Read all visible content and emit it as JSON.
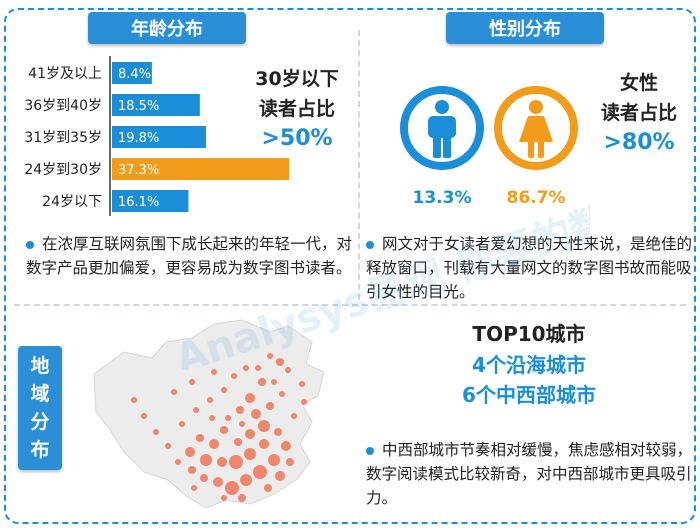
{
  "sections": {
    "age": "年龄分布",
    "gender": "性别分布",
    "region": "地域分布"
  },
  "chart_data": {
    "type": "bar",
    "orientation": "horizontal",
    "title": "年龄分布",
    "categories": [
      "41岁及以上",
      "36岁到40岁",
      "31岁到35岁",
      "24岁到30岁",
      "24岁以下"
    ],
    "values": [
      8.4,
      18.5,
      19.8,
      37.3,
      16.1
    ],
    "labels": [
      "8.4%",
      "18.5%",
      "19.8%",
      "37.3%",
      "16.1%"
    ],
    "colors": [
      "#1a8ed8",
      "#1a8ed8",
      "#1a8ed8",
      "#f39b1a",
      "#1a8ed8"
    ],
    "xlim": [
      0,
      40
    ],
    "grid": false
  },
  "age_note": {
    "line1": "30岁以下",
    "line2": "读者占比",
    "line3": ">50%"
  },
  "age_desc": "在浓厚互联网氛围下成长起来的年轻一代，对数字产品更加偏爱，更容易成为数字图书读者。",
  "gender": {
    "male": {
      "icon": "male-person-icon",
      "pct": "13.3%",
      "color": "#1a8ed8"
    },
    "female": {
      "icon": "female-person-icon",
      "pct": "86.7%",
      "color": "#f39b1a"
    }
  },
  "gender_note": {
    "line1": "女性",
    "line2": "读者占比",
    "line3": ">80%"
  },
  "gender_desc": "网文对于女读者爱幻想的天性来说，是绝佳的释放窗口，刊载有大量网文的数字图书故而能吸引女性的目光。",
  "region_tag": "地域分布",
  "top10": {
    "title": "TOP10城市",
    "line1": "4个沿海城市",
    "line2": "6个中西部城市"
  },
  "region_desc": "中西部城市节奏相对缓慢，焦虑感相对较弱，数字阅读模式比较新奇，对中西部城市更具吸引力。",
  "map": {
    "icon": "china-map-icon",
    "dot_color": "#f07050"
  },
  "watermark": "Analysys易观 你要的数据"
}
